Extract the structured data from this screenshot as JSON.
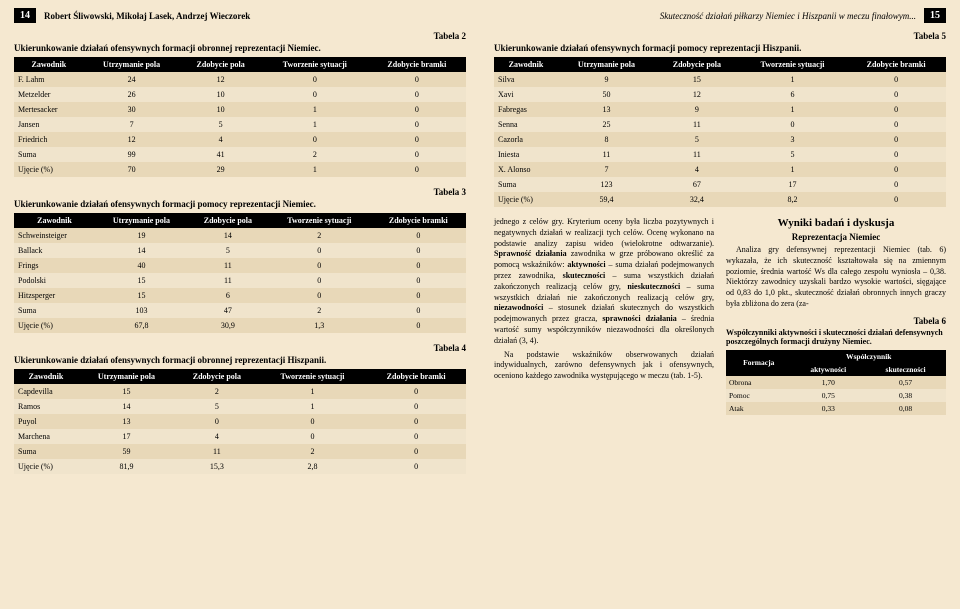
{
  "left": {
    "pageNum": "14",
    "author": "Robert Śliwowski, Mikołaj Lasek, Andrzej Wieczorek",
    "t2label": "Tabela 2",
    "t2caption": "Ukierunkowanie działań ofensywnych formacji obronnej reprezentacji Niemiec.",
    "t3label": "Tabela 3",
    "t3caption": "Ukierunkowanie działań ofensywnych formacji pomocy reprezentacji Niemiec.",
    "t4label": "Tabela 4",
    "t4caption": "Ukierunkowanie działań ofensywnych formacji obronnej reprezentacji Hiszpanii.",
    "cols": [
      "Zawodnik",
      "Utrzymanie pola",
      "Zdobycie pola",
      "Tworzenie sytuacji",
      "Zdobycie bramki"
    ],
    "t2": [
      [
        "F. Lahm",
        "24",
        "12",
        "0",
        "0"
      ],
      [
        "Metzelder",
        "26",
        "10",
        "0",
        "0"
      ],
      [
        "Mertesacker",
        "30",
        "10",
        "1",
        "0"
      ],
      [
        "Jansen",
        "7",
        "5",
        "1",
        "0"
      ],
      [
        "Friedrich",
        "12",
        "4",
        "0",
        "0"
      ],
      [
        "Suma",
        "99",
        "41",
        "2",
        "0"
      ],
      [
        "Ujęcie (%)",
        "70",
        "29",
        "1",
        "0"
      ]
    ],
    "t3": [
      [
        "Schweinsteiger",
        "19",
        "14",
        "2",
        "0"
      ],
      [
        "Ballack",
        "14",
        "5",
        "0",
        "0"
      ],
      [
        "Frings",
        "40",
        "11",
        "0",
        "0"
      ],
      [
        "Podolski",
        "15",
        "11",
        "0",
        "0"
      ],
      [
        "Hitzsperger",
        "15",
        "6",
        "0",
        "0"
      ],
      [
        "Suma",
        "103",
        "47",
        "2",
        "0"
      ],
      [
        "Ujęcie (%)",
        "67,8",
        "30,9",
        "1,3",
        "0"
      ]
    ],
    "t4": [
      [
        "Capdevilla",
        "15",
        "2",
        "1",
        "0"
      ],
      [
        "Ramos",
        "14",
        "5",
        "1",
        "0"
      ],
      [
        "Puyol",
        "13",
        "0",
        "0",
        "0"
      ],
      [
        "Marchena",
        "17",
        "4",
        "0",
        "0"
      ],
      [
        "Suma",
        "59",
        "11",
        "2",
        "0"
      ],
      [
        "Ujęcie (%)",
        "81,9",
        "15,3",
        "2,8",
        "0"
      ]
    ]
  },
  "right": {
    "pageNum": "15",
    "title": "Skuteczność działań piłkarzy Niemiec i Hiszpanii w meczu finałowym...",
    "t5label": "Tabela 5",
    "t5caption": "Ukierunkowanie działań ofensywnych formacji pomocy reprezentacji Hiszpanii.",
    "cols": [
      "Zawodnik",
      "Utrzymanie pola",
      "Zdobycie pola",
      "Tworzenie sytuacji",
      "Zdobycie bramki"
    ],
    "t5": [
      [
        "Silva",
        "9",
        "15",
        "1",
        "0"
      ],
      [
        "Xavi",
        "50",
        "12",
        "6",
        "0"
      ],
      [
        "Fabregas",
        "13",
        "9",
        "1",
        "0"
      ],
      [
        "Senna",
        "25",
        "11",
        "0",
        "0"
      ],
      [
        "Cazorla",
        "8",
        "5",
        "3",
        "0"
      ],
      [
        "Iniesta",
        "11",
        "11",
        "5",
        "0"
      ],
      [
        "X. Alonso",
        "7",
        "4",
        "1",
        "0"
      ],
      [
        "Suma",
        "123",
        "67",
        "17",
        "0"
      ],
      [
        "Ujęcie (%)",
        "59,4",
        "32,4",
        "8,2",
        "0"
      ]
    ],
    "para1a": "jednego z celów gry. Kryterium oceny była liczba pozytywnych i negatywnych działań w realizacji tych celów. Ocenę wykonano na podstawie analizy zapisu wideo (wielokrotne odtwarzanie). ",
    "para1b": "Sprawność działania",
    "para1c": " zawodnika w grze próbowano określić za pomocą wskaźników: ",
    "para1d": "aktywności",
    "para1e": " – suma działań podejmowanych przez zawodnika, ",
    "para1f": "skuteczności",
    "para1g": " – suma wszystkich działań zakończonych realizacją celów gry, ",
    "para1h": "nieskuteczności",
    "para1i": " – suma wszystkich działań nie zakończonych realizacją celów gry, ",
    "para1j": "niezawodności",
    "para1k": " – stosunek działań skutecznych do wszystkich podejmowanych przez gracza, ",
    "para1l": "sprawności działania",
    "para1m": " – średnia wartość sumy współczynników niezawodności dla określonych działań (3, 4).",
    "para2": "Na podstawie wskaźników obserwowanych działań indywidualnych, zarówno defensywnych jak i ofensywnych, oceniono każdego zawodnika występującego w meczu (tab. 1-5).",
    "resultsHeading": "Wyniki badań i dyskusja",
    "resultsSub": "Reprezentacja Niemiec",
    "resultsPara": "Analiza gry defensywnej reprezentacji Niemiec (tab. 6) wykazała, że ich skuteczność kształtowała się na zmiennym poziomie, średnia wartość Ws dla całego zespołu wyniosła – 0,38. Niektórzy zawodnicy uzyskali bardzo wysokie wartości, sięgające od 0,83 do 1,0 pkt., skuteczność działań obronnych innych graczy była zbliżona do zera (za-",
    "t6label": "Tabela 6",
    "t6caption": "Współczynniki aktywności i skuteczności działań defensywnych poszczególnych formacji drużyny Niemiec.",
    "t6head1": "Formacja",
    "t6head2": "Współczynnik",
    "t6sub1": "aktywności",
    "t6sub2": "skuteczności",
    "t6rows": [
      [
        "Obrona",
        "1,70",
        "0,57"
      ],
      [
        "Pomoc",
        "0,75",
        "0,38"
      ],
      [
        "Atak",
        "0,33",
        "0,08"
      ]
    ]
  }
}
